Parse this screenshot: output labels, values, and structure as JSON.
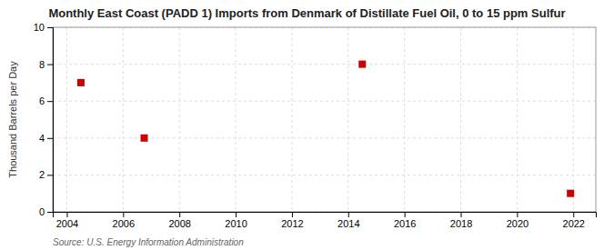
{
  "chart_data": {
    "type": "scatter",
    "title": "Monthly East Coast (PADD 1) Imports from Denmark of Distillate Fuel Oil, 0 to 15 ppm Sulfur",
    "ylabel": "Thousand Barrels per Day",
    "source": "Source: U.S. Energy Information Administration",
    "x": [
      2004.5,
      2006.75,
      2014.5,
      2021.9
    ],
    "values": [
      7.0,
      4.0,
      8.0,
      1.0
    ],
    "color": "#cc0000",
    "marker": "square",
    "xlim": [
      2003.5,
      2022.8
    ],
    "ylim": [
      0,
      10
    ],
    "xticks": [
      2004,
      2006,
      2008,
      2010,
      2012,
      2014,
      2016,
      2018,
      2020,
      2022
    ],
    "yticks": [
      0,
      2,
      4,
      6,
      8,
      10
    ],
    "grid": true
  }
}
